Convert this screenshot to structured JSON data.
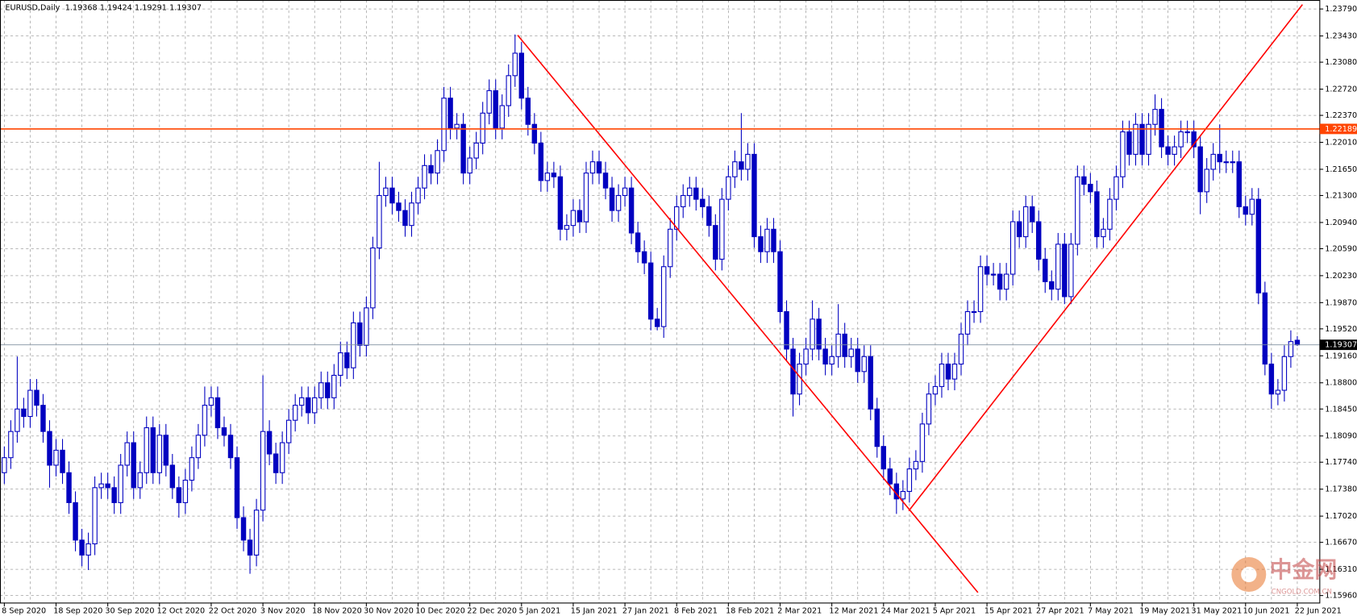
{
  "chart_data": {
    "type": "candlestick",
    "title": "EURUSD,Daily",
    "categories": [
      "8 Sep 2020",
      null,
      null,
      null,
      null,
      null,
      null,
      null,
      "18 Sep 2020",
      null,
      null,
      null,
      null,
      null,
      null,
      null,
      "30 Sep 2020",
      null,
      null,
      null,
      null,
      null,
      null,
      null,
      "12 Oct 2020",
      null,
      null,
      null,
      null,
      null,
      null,
      null,
      "22 Oct 2020",
      null,
      null,
      null,
      null,
      null,
      null,
      null,
      "3 Nov 2020",
      null,
      null,
      null,
      null,
      null,
      null,
      null,
      "18 Nov 2020",
      null,
      null,
      null,
      null,
      null,
      null,
      null,
      "30 Nov 2020",
      null,
      null,
      null,
      null,
      null,
      null,
      null,
      "10 Dec 2020",
      null,
      null,
      null,
      null,
      null,
      null,
      null,
      "22 Dec 2020",
      null,
      null,
      null,
      null,
      null,
      null,
      null,
      "5 Jan 2021",
      null,
      null,
      null,
      null,
      null,
      null,
      null,
      "15 Jan 2021",
      null,
      null,
      null,
      null,
      null,
      null,
      null,
      "27 Jan 2021",
      null,
      null,
      null,
      null,
      null,
      null,
      null,
      "8 Feb 2021",
      null,
      null,
      null,
      null,
      null,
      null,
      null,
      "18 Feb 2021",
      null,
      null,
      null,
      null,
      null,
      null,
      null,
      "2 Mar 2021",
      null,
      null,
      null,
      null,
      null,
      null,
      null,
      "12 Mar 2021",
      null,
      null,
      null,
      null,
      null,
      null,
      null,
      "24 Mar 2021",
      null,
      null,
      null,
      null,
      null,
      null,
      null,
      "5 Apr 2021",
      null,
      null,
      null,
      null,
      null,
      null,
      null,
      "15 Apr 2021",
      null,
      null,
      null,
      null,
      null,
      null,
      null,
      "27 Apr 2021",
      null,
      null,
      null,
      null,
      null,
      null,
      null,
      "7 May 2021",
      null,
      null,
      null,
      null,
      null,
      null,
      null,
      "19 May 2021",
      null,
      null,
      null,
      null,
      null,
      null,
      null,
      "31 May 2021",
      null,
      null,
      null,
      null,
      null,
      null,
      null,
      "10 Jun 2021",
      null,
      null,
      null,
      null,
      null,
      null,
      null,
      "22 Jun 2021"
    ],
    "open": [
      1.176,
      1.178,
      1.1815,
      1.1845,
      1.1835,
      1.187,
      1.185,
      1.1815,
      1.177,
      1.179,
      1.176,
      1.172,
      1.167,
      1.165,
      1.1665,
      1.174,
      1.1745,
      1.174,
      1.172,
      1.177,
      1.18,
      1.174,
      1.176,
      1.182,
      1.176,
      1.181,
      1.177,
      1.174,
      1.172,
      1.175,
      1.178,
      1.181,
      1.185,
      1.186,
      1.182,
      1.181,
      1.178,
      1.17,
      1.167,
      1.165,
      1.171,
      1.1815,
      1.1785,
      1.176,
      1.18,
      1.183,
      1.185,
      1.186,
      1.184,
      1.186,
      1.188,
      1.186,
      1.189,
      1.192,
      1.19,
      1.196,
      1.193,
      1.198,
      1.206,
      1.213,
      1.214,
      1.212,
      1.211,
      1.209,
      1.212,
      1.214,
      1.217,
      1.216,
      1.219,
      1.226,
      1.222,
      1.2225,
      1.216,
      1.218,
      1.22,
      1.224,
      1.227,
      1.222,
      1.225,
      1.229,
      1.232,
      1.226,
      1.2225,
      1.22,
      1.215,
      1.216,
      1.2155,
      1.2085,
      1.209,
      1.211,
      1.2095,
      1.216,
      1.2175,
      1.216,
      1.214,
      1.211,
      1.213,
      1.214,
      1.208,
      1.2055,
      1.204,
      1.1965,
      1.1955,
      1.2035,
      1.2085,
      1.2115,
      1.213,
      1.214,
      1.2125,
      1.2115,
      1.209,
      1.2045,
      1.2125,
      1.2155,
      1.2175,
      1.2165,
      1.2185,
      1.2075,
      1.2055,
      1.2085,
      1.2055,
      1.1975,
      1.1925,
      1.1865,
      1.1905,
      1.1925,
      1.1965,
      1.1925,
      1.1905,
      1.1915,
      1.1945,
      1.1915,
      1.1925,
      1.1895,
      1.1915,
      1.1845,
      1.1795,
      1.1765,
      1.1745,
      1.1725,
      1.1735,
      1.1765,
      1.1775,
      1.1825,
      1.1865,
      1.1875,
      1.1905,
      1.1885,
      1.1905,
      1.1945,
      1.1975,
      1.1975,
      1.2035,
      1.2025,
      1.2025,
      1.2005,
      1.2025,
      1.2095,
      1.2075,
      1.2115,
      1.2095,
      1.2045,
      1.2015,
      1.2005,
      1.2065,
      1.1995,
      1.2065,
      1.2155,
      1.2145,
      1.2135,
      1.2075,
      1.2085,
      1.2125,
      1.2155,
      1.2215,
      1.2185,
      1.2225,
      1.2185,
      1.2225,
      1.2245,
      1.2195,
      1.2185,
      1.2195,
      1.2215,
      1.2215,
      1.2195,
      1.2135,
      1.2165,
      1.2185,
      1.2175,
      1.2175,
      1.2175,
      1.2115,
      1.2105,
      1.2125,
      1.2,
      1.1905,
      1.1865,
      1.187,
      1.1915,
      1.19368
    ],
    "high": [
      1.1795,
      1.183,
      1.1915,
      1.186,
      1.1885,
      1.1885,
      1.1865,
      1.183,
      1.1805,
      1.1805,
      1.1775,
      1.1735,
      1.1685,
      1.168,
      1.1755,
      1.176,
      1.176,
      1.1755,
      1.1785,
      1.1815,
      1.1815,
      1.1775,
      1.1835,
      1.1835,
      1.1825,
      1.1825,
      1.1785,
      1.1755,
      1.1765,
      1.1795,
      1.1825,
      1.1875,
      1.1875,
      1.1875,
      1.1835,
      1.1825,
      1.1795,
      1.1715,
      1.1685,
      1.1725,
      1.189,
      1.183,
      1.18,
      1.1815,
      1.1845,
      1.1865,
      1.1875,
      1.1875,
      1.1875,
      1.1895,
      1.1895,
      1.1905,
      1.1935,
      1.1935,
      1.1975,
      1.1975,
      1.1995,
      1.2075,
      1.2175,
      1.2155,
      1.2155,
      1.2135,
      1.2125,
      1.2135,
      1.2155,
      1.2185,
      1.2185,
      1.2205,
      1.2275,
      1.2275,
      1.224,
      1.224,
      1.2195,
      1.2215,
      1.2255,
      1.2285,
      1.2285,
      1.2265,
      1.2305,
      1.2345,
      1.2335,
      1.2275,
      1.224,
      1.2215,
      1.2175,
      1.2175,
      1.217,
      1.2105,
      1.2125,
      1.2125,
      1.2175,
      1.219,
      1.219,
      1.2175,
      1.2155,
      1.2145,
      1.2155,
      1.2155,
      1.2095,
      1.207,
      1.2055,
      1.198,
      1.205,
      1.21,
      1.213,
      1.2145,
      1.2155,
      1.2155,
      1.214,
      1.213,
      1.2105,
      1.214,
      1.217,
      1.219,
      1.224,
      1.22,
      1.22,
      1.209,
      1.21,
      1.21,
      1.207,
      1.199,
      1.194,
      1.192,
      1.194,
      1.199,
      1.198,
      1.194,
      1.193,
      1.1985,
      1.196,
      1.194,
      1.194,
      1.193,
      1.193,
      1.186,
      1.181,
      1.178,
      1.176,
      1.175,
      1.178,
      1.179,
      1.184,
      1.188,
      1.189,
      1.192,
      1.192,
      1.192,
      1.196,
      1.199,
      1.199,
      1.205,
      1.205,
      1.204,
      1.204,
      1.204,
      1.211,
      1.211,
      1.213,
      1.213,
      1.211,
      1.206,
      1.203,
      1.208,
      1.208,
      1.208,
      1.217,
      1.217,
      1.216,
      1.215,
      1.21,
      1.214,
      1.217,
      1.223,
      1.223,
      1.224,
      1.224,
      1.224,
      1.2265,
      1.226,
      1.221,
      1.221,
      1.223,
      1.223,
      1.223,
      1.221,
      1.218,
      1.22,
      1.2225,
      1.219,
      1.219,
      1.219,
      1.213,
      1.214,
      1.214,
      1.2015,
      1.192,
      1.1885,
      1.193,
      1.195,
      1.19424
    ],
    "low": [
      1.1745,
      1.1765,
      1.18,
      1.182,
      1.182,
      1.1835,
      1.18,
      1.174,
      1.1755,
      1.1745,
      1.1705,
      1.1655,
      1.1635,
      1.163,
      1.165,
      1.1725,
      1.1725,
      1.1705,
      1.1705,
      1.1755,
      1.1725,
      1.1725,
      1.1745,
      1.1745,
      1.1745,
      1.1755,
      1.1725,
      1.17,
      1.1705,
      1.1735,
      1.1765,
      1.1795,
      1.1835,
      1.1805,
      1.1795,
      1.1765,
      1.1685,
      1.1655,
      1.1625,
      1.1635,
      1.1695,
      1.177,
      1.1745,
      1.1745,
      1.1785,
      1.1815,
      1.1835,
      1.1825,
      1.1825,
      1.1845,
      1.1845,
      1.1845,
      1.1875,
      1.1885,
      1.1885,
      1.1915,
      1.1915,
      1.1965,
      1.2045,
      1.2115,
      1.2105,
      1.2095,
      1.2075,
      1.2075,
      1.2105,
      1.2125,
      1.2145,
      1.2145,
      1.2175,
      1.2205,
      1.2205,
      1.2145,
      1.2145,
      1.2165,
      1.2185,
      1.2225,
      1.2205,
      1.2205,
      1.2235,
      1.2275,
      1.2245,
      1.221,
      1.2185,
      1.2135,
      1.2135,
      1.214,
      1.207,
      1.207,
      1.2075,
      1.208,
      1.208,
      1.2145,
      1.2145,
      1.2125,
      1.2095,
      1.2095,
      1.2115,
      1.2065,
      1.204,
      1.2025,
      1.195,
      1.195,
      1.194,
      1.202,
      1.207,
      1.21,
      1.2115,
      1.211,
      1.21,
      1.2075,
      1.203,
      1.203,
      1.211,
      1.214,
      1.215,
      1.215,
      1.206,
      1.204,
      1.204,
      1.204,
      1.196,
      1.191,
      1.1835,
      1.185,
      1.189,
      1.191,
      1.191,
      1.189,
      1.189,
      1.19,
      1.19,
      1.19,
      1.188,
      1.188,
      1.183,
      1.178,
      1.175,
      1.173,
      1.1705,
      1.171,
      1.172,
      1.175,
      1.176,
      1.181,
      1.185,
      1.186,
      1.187,
      1.187,
      1.189,
      1.193,
      1.196,
      1.196,
      1.201,
      1.201,
      1.199,
      1.199,
      1.201,
      1.206,
      1.206,
      1.208,
      1.203,
      1.2,
      1.199,
      1.199,
      1.1985,
      1.1985,
      1.205,
      1.213,
      1.212,
      1.206,
      1.206,
      1.207,
      1.211,
      1.214,
      1.217,
      1.217,
      1.217,
      1.217,
      1.221,
      1.218,
      1.217,
      1.217,
      1.218,
      1.22,
      1.218,
      1.2105,
      1.212,
      1.215,
      1.216,
      1.216,
      1.216,
      1.21,
      1.209,
      1.209,
      1.1985,
      1.189,
      1.1845,
      1.185,
      1.1855,
      1.19,
      1.19291
    ],
    "close": [
      1.178,
      1.1815,
      1.1845,
      1.1835,
      1.187,
      1.185,
      1.1815,
      1.177,
      1.179,
      1.176,
      1.172,
      1.167,
      1.165,
      1.1665,
      1.174,
      1.1745,
      1.174,
      1.172,
      1.177,
      1.18,
      1.174,
      1.176,
      1.182,
      1.176,
      1.181,
      1.177,
      1.174,
      1.172,
      1.175,
      1.178,
      1.181,
      1.185,
      1.186,
      1.182,
      1.181,
      1.178,
      1.17,
      1.167,
      1.165,
      1.171,
      1.1815,
      1.1785,
      1.176,
      1.18,
      1.183,
      1.185,
      1.186,
      1.184,
      1.186,
      1.188,
      1.186,
      1.189,
      1.192,
      1.19,
      1.196,
      1.193,
      1.198,
      1.206,
      1.213,
      1.214,
      1.212,
      1.211,
      1.209,
      1.212,
      1.214,
      1.217,
      1.216,
      1.219,
      1.226,
      1.222,
      1.2225,
      1.216,
      1.218,
      1.22,
      1.224,
      1.227,
      1.222,
      1.225,
      1.229,
      1.232,
      1.226,
      1.2225,
      1.22,
      1.215,
      1.216,
      1.2155,
      1.2085,
      1.209,
      1.211,
      1.2095,
      1.216,
      1.2175,
      1.216,
      1.214,
      1.211,
      1.213,
      1.214,
      1.208,
      1.2055,
      1.204,
      1.1965,
      1.1955,
      1.2035,
      1.2085,
      1.2115,
      1.213,
      1.214,
      1.2125,
      1.2115,
      1.209,
      1.2045,
      1.2125,
      1.2155,
      1.2175,
      1.2165,
      1.2185,
      1.2075,
      1.2055,
      1.2085,
      1.2055,
      1.1975,
      1.1925,
      1.1865,
      1.1905,
      1.1925,
      1.1965,
      1.1925,
      1.1905,
      1.1915,
      1.1945,
      1.1915,
      1.1925,
      1.1895,
      1.1915,
      1.1845,
      1.1795,
      1.1765,
      1.1745,
      1.1725,
      1.1735,
      1.1765,
      1.1775,
      1.1825,
      1.1865,
      1.1875,
      1.1905,
      1.1885,
      1.1905,
      1.1945,
      1.1975,
      1.1975,
      1.2035,
      1.2025,
      1.2025,
      1.2005,
      1.2025,
      1.2095,
      1.2075,
      1.2115,
      1.2095,
      1.2045,
      1.2015,
      1.2005,
      1.2065,
      1.1995,
      1.2065,
      1.2155,
      1.2145,
      1.2135,
      1.2075,
      1.2085,
      1.2125,
      1.2155,
      1.2215,
      1.2185,
      1.2225,
      1.2185,
      1.2225,
      1.2245,
      1.2195,
      1.2185,
      1.2195,
      1.2215,
      1.2215,
      1.2195,
      1.2135,
      1.2165,
      1.2185,
      1.2175,
      1.2175,
      1.2175,
      1.2115,
      1.2105,
      1.2125,
      1.2,
      1.1905,
      1.1865,
      1.187,
      1.1915,
      1.1935,
      1.19307
    ],
    "bull_color": "#ffffff",
    "bear_color": "#0000c0",
    "wick_color": "#0000c0",
    "ylim": [
      1.1586,
      1.2391
    ],
    "yticks": [
      {
        "value": 1.2379,
        "label": "1.23790"
      },
      {
        "value": 1.2343,
        "label": "1.23430"
      },
      {
        "value": 1.2308,
        "label": "1.23080"
      },
      {
        "value": 1.2272,
        "label": "1.22720"
      },
      {
        "value": 1.2237,
        "label": "1.22370"
      },
      {
        "value": 1.2201,
        "label": "1.22010"
      },
      {
        "value": 1.2165,
        "label": "1.21650"
      },
      {
        "value": 1.213,
        "label": "1.21300"
      },
      {
        "value": 1.2094,
        "label": "1.20940"
      },
      {
        "value": 1.2059,
        "label": "1.20590"
      },
      {
        "value": 1.2023,
        "label": "1.20230"
      },
      {
        "value": 1.1987,
        "label": "1.19870"
      },
      {
        "value": 1.1952,
        "label": "1.19520"
      },
      {
        "value": 1.1916,
        "label": "1.19160"
      },
      {
        "value": 1.188,
        "label": "1.18800"
      },
      {
        "value": 1.1845,
        "label": "1.18450"
      },
      {
        "value": 1.1809,
        "label": "1.18090"
      },
      {
        "value": 1.1774,
        "label": "1.17740"
      },
      {
        "value": 1.1738,
        "label": "1.17380"
      },
      {
        "value": 1.1702,
        "label": "1.17020"
      },
      {
        "value": 1.1667,
        "label": "1.16670"
      },
      {
        "value": 1.1631,
        "label": "1.16310"
      },
      {
        "value": 1.1596,
        "label": "1.15960"
      }
    ],
    "grid": true,
    "hline": {
      "value": 1.22189,
      "color": "#ff4500"
    },
    "trendlines": [
      {
        "x": [
          79.4,
          150.6
        ],
        "y": [
          1.2344,
          1.16
        ],
        "color": "#ff0000"
      },
      {
        "x": [
          139.9,
          200.8
        ],
        "y": [
          1.1709,
          1.2385
        ],
        "color": "#ff0000"
      }
    ],
    "watermark": {
      "title": "中金网",
      "subtitle": "CNGOLD.COM.CN"
    }
  }
}
